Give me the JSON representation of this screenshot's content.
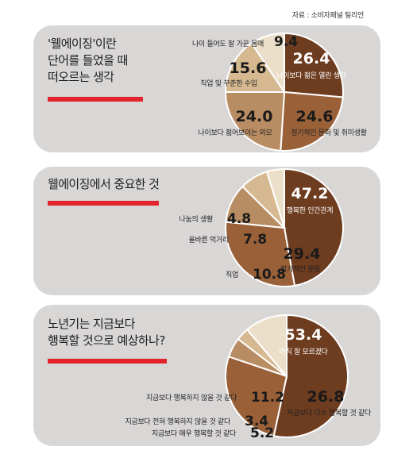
{
  "source": "자료 : 소비자패널 틸리언",
  "colors": {
    "panel": "#d9d6d6",
    "accent": "#e3232b",
    "outline": "#ffffff"
  },
  "chart_data": [
    {
      "type": "pie",
      "title": "'웰에이징'이란\n단어를 들었을 때\n떠오르는 생각",
      "unit": "%",
      "slices": [
        {
          "label": "나이보다 젊은 열린 생각",
          "value": 26.4,
          "color": "#6e3c1f"
        },
        {
          "label": "정기적인 문화 및 취미생활",
          "value": 24.6,
          "color": "#9a6138"
        },
        {
          "label": "나이보다 젊어보이는 외모",
          "value": 24.0,
          "color": "#b98d63"
        },
        {
          "label": "직업 및 꾸준한 수입",
          "value": 15.6,
          "color": "#d6b991"
        },
        {
          "label": "나이 들어도 잘 가꾼 몸매",
          "value": 9.4,
          "color": "#ecdfc9"
        }
      ]
    },
    {
      "type": "pie",
      "title": "웰에이징에서 중요한 것",
      "unit": "%",
      "slices": [
        {
          "label": "행복한 인간관계",
          "value": 47.2,
          "color": "#6e3c1f"
        },
        {
          "label": "정기적인 운동",
          "value": 29.4,
          "color": "#9a6138"
        },
        {
          "label": "직업",
          "value": 10.8,
          "color": "#b98d63"
        },
        {
          "label": "올바른 먹거리",
          "value": 7.8,
          "color": "#d6b991"
        },
        {
          "label": "나눔의 생활",
          "value": 4.8,
          "color": "#ecdfc9"
        }
      ]
    },
    {
      "type": "pie",
      "title": "노년기는 지금보다\n행복할 것으로 예상하나?",
      "unit": "%",
      "slices": [
        {
          "label": "아직 잘 모르겠다",
          "value": 53.4,
          "color": "#6e3c1f"
        },
        {
          "label": "지금보다 다소 행복할 것 같다",
          "value": 26.8,
          "color": "#9a6138"
        },
        {
          "label": "지금보다 매우 행복할 것 같다",
          "value": 5.2,
          "color": "#b98d63"
        },
        {
          "label": "지금보다 전혀 행복하지 않을 것 같다",
          "value": 3.4,
          "color": "#d6b991"
        },
        {
          "label": "지금보다 행복하지 않을 것 같다",
          "value": 11.2,
          "color": "#ecdfc9"
        }
      ]
    }
  ]
}
